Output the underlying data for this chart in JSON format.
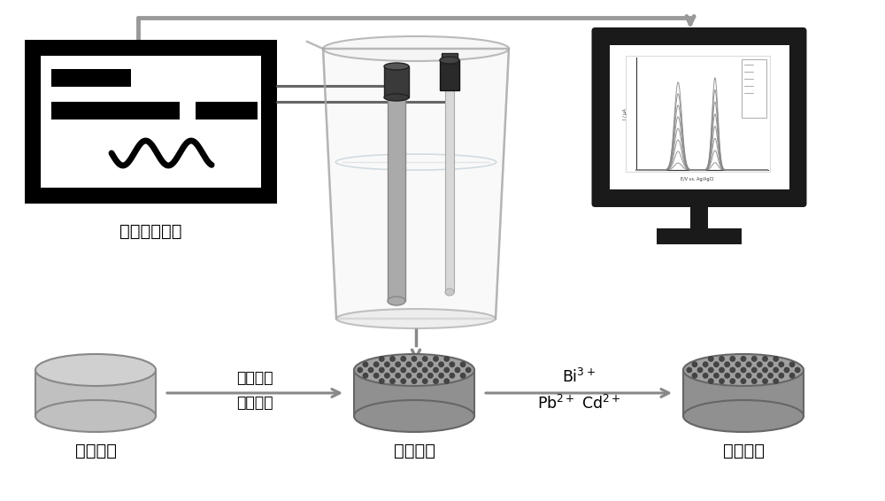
{
  "bg_color": "#ffffff",
  "workstation_label": "电化学工作站",
  "electrode1_label": "玻碳电极",
  "electrode2_label": "修饰电极",
  "electrode3_label": "修饰电极",
  "arrow1_line1": "纳米复合",
  "arrow1_line2": "物修饰液",
  "arrow2_line1": "Bi$^{3+}$",
  "arrow2_line2": "Pb$^{2+}$ Cd$^{2+}$",
  "arrow_color": "#888888",
  "wire_color": "#999999",
  "wire_color2": "#555555"
}
